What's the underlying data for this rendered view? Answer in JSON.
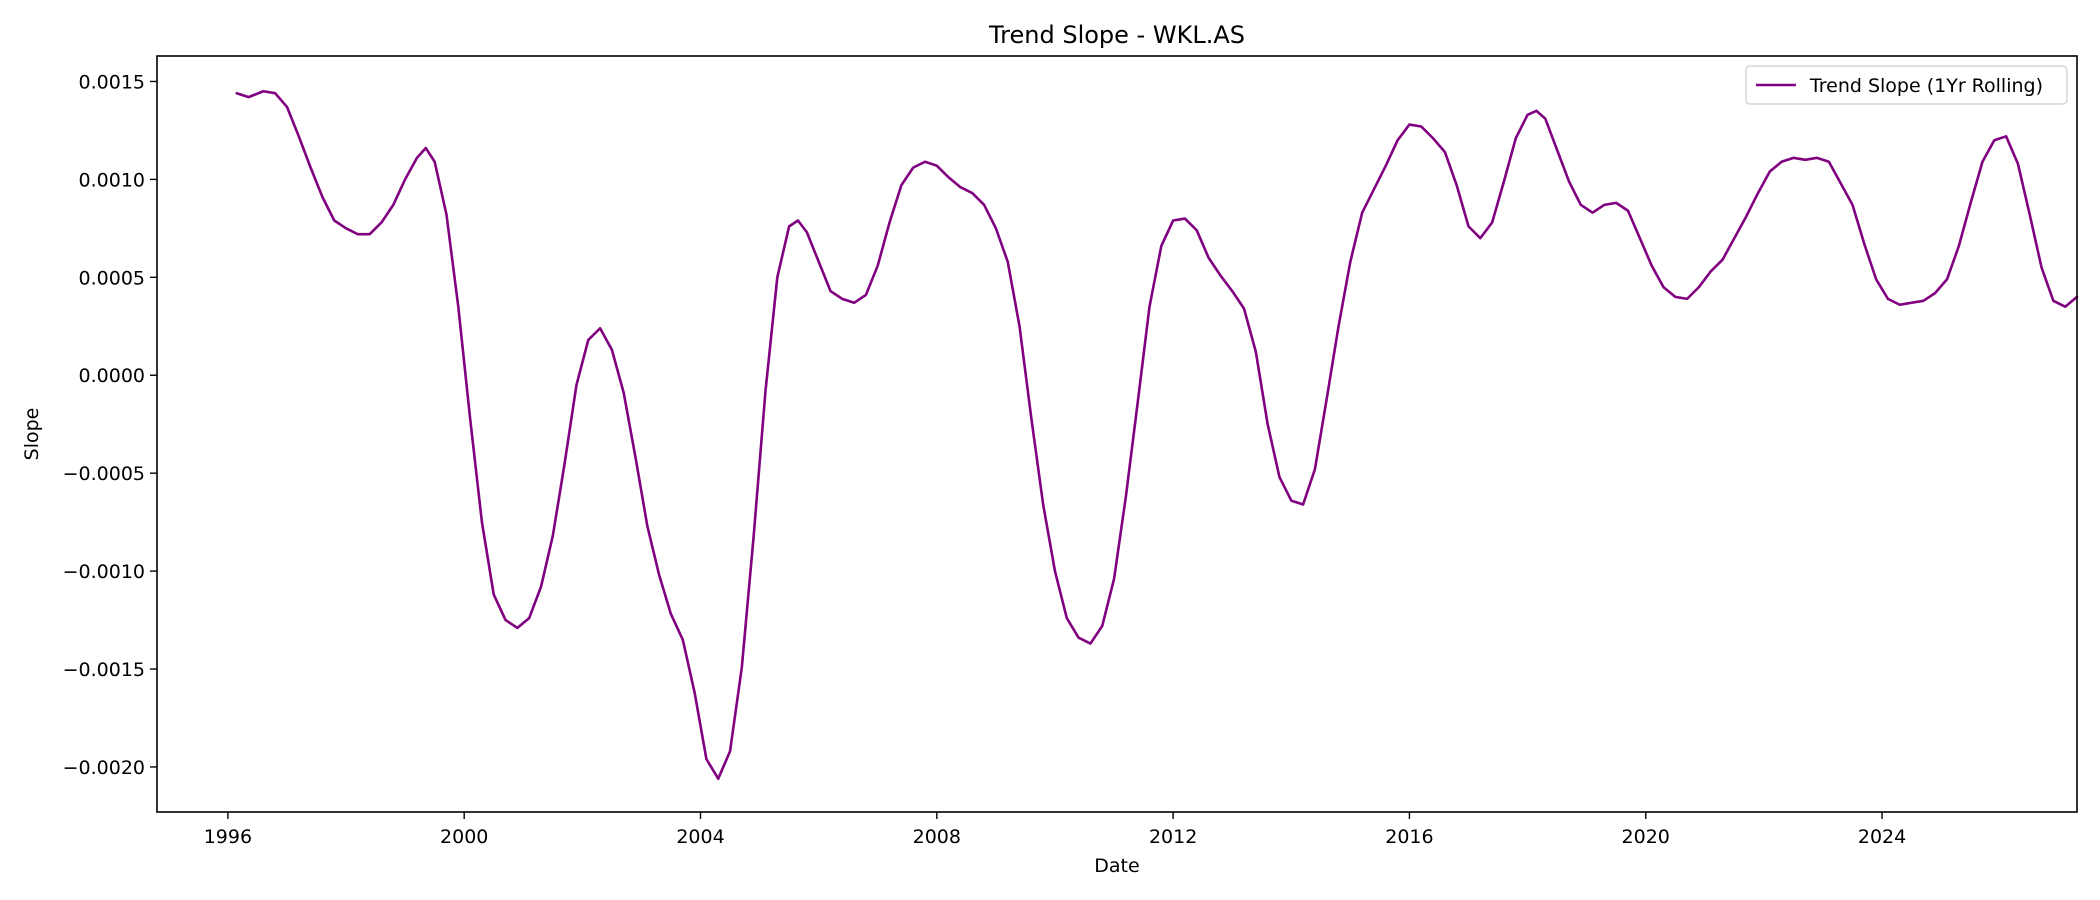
{
  "chart_data": {
    "type": "line",
    "title": "Trend Slope - WKL.AS",
    "xlabel": "Date",
    "ylabel": "Slope",
    "xlim": [
      1994.8,
      2027.3
    ],
    "ylim": [
      -0.00223,
      0.00163
    ],
    "x_ticks": [
      1996,
      2000,
      2004,
      2008,
      2012,
      2016,
      2020,
      2024
    ],
    "x_tick_labels": [
      "1996",
      "2000",
      "2004",
      "2008",
      "2012",
      "2016",
      "2020",
      "2024"
    ],
    "y_ticks": [
      0.0015,
      0.001,
      0.0005,
      0.0,
      -0.0005,
      -0.001,
      -0.0015,
      -0.002
    ],
    "y_tick_labels": [
      "0.0015",
      "0.0010",
      "0.0005",
      "0.0000",
      "−0.0005",
      "−0.0010",
      "−0.0015",
      "−0.0020"
    ],
    "grid": false,
    "legend_position": "top-right",
    "series": [
      {
        "name": "Trend Slope (1Yr Rolling)",
        "color": "#800080",
        "points": [
          [
            1996.15,
            0.00144
          ],
          [
            1996.35,
            0.00142
          ],
          [
            1996.6,
            0.00145
          ],
          [
            1996.8,
            0.00144
          ],
          [
            1997.0,
            0.00137
          ],
          [
            1997.2,
            0.00122
          ],
          [
            1997.4,
            0.00106
          ],
          [
            1997.6,
            0.00091
          ],
          [
            1997.8,
            0.00079
          ],
          [
            1998.0,
            0.00075
          ],
          [
            1998.2,
            0.00072
          ],
          [
            1998.4,
            0.00072
          ],
          [
            1998.6,
            0.00078
          ],
          [
            1998.8,
            0.00087
          ],
          [
            1999.0,
            0.001
          ],
          [
            1999.2,
            0.00111
          ],
          [
            1999.35,
            0.00116
          ],
          [
            1999.5,
            0.00109
          ],
          [
            1999.7,
            0.00082
          ],
          [
            1999.9,
            0.00035
          ],
          [
            2000.1,
            -0.00022
          ],
          [
            2000.3,
            -0.00075
          ],
          [
            2000.5,
            -0.00112
          ],
          [
            2000.7,
            -0.00125
          ],
          [
            2000.9,
            -0.00129
          ],
          [
            2001.1,
            -0.00124
          ],
          [
            2001.3,
            -0.00108
          ],
          [
            2001.5,
            -0.00082
          ],
          [
            2001.7,
            -0.00045
          ],
          [
            2001.9,
            -5e-05
          ],
          [
            2002.1,
            0.00018
          ],
          [
            2002.3,
            0.00024
          ],
          [
            2002.5,
            0.00013
          ],
          [
            2002.7,
            -9e-05
          ],
          [
            2002.9,
            -0.00042
          ],
          [
            2003.1,
            -0.00077
          ],
          [
            2003.3,
            -0.00102
          ],
          [
            2003.5,
            -0.00122
          ],
          [
            2003.7,
            -0.00135
          ],
          [
            2003.9,
            -0.00162
          ],
          [
            2004.1,
            -0.00196
          ],
          [
            2004.3,
            -0.00206
          ],
          [
            2004.5,
            -0.00192
          ],
          [
            2004.7,
            -0.00149
          ],
          [
            2004.9,
            -0.00082
          ],
          [
            2005.1,
            -8e-05
          ],
          [
            2005.3,
            0.0005
          ],
          [
            2005.5,
            0.00076
          ],
          [
            2005.65,
            0.00079
          ],
          [
            2005.8,
            0.00073
          ],
          [
            2006.0,
            0.00058
          ],
          [
            2006.2,
            0.00043
          ],
          [
            2006.4,
            0.00039
          ],
          [
            2006.6,
            0.00037
          ],
          [
            2006.8,
            0.00041
          ],
          [
            2007.0,
            0.00056
          ],
          [
            2007.2,
            0.00078
          ],
          [
            2007.4,
            0.00097
          ],
          [
            2007.6,
            0.00106
          ],
          [
            2007.8,
            0.00109
          ],
          [
            2008.0,
            0.00107
          ],
          [
            2008.2,
            0.00101
          ],
          [
            2008.4,
            0.00096
          ],
          [
            2008.6,
            0.00093
          ],
          [
            2008.8,
            0.00087
          ],
          [
            2009.0,
            0.00075
          ],
          [
            2009.2,
            0.00058
          ],
          [
            2009.4,
            0.00025
          ],
          [
            2009.6,
            -0.00022
          ],
          [
            2009.8,
            -0.00066
          ],
          [
            2010.0,
            -0.001
          ],
          [
            2010.2,
            -0.00124
          ],
          [
            2010.4,
            -0.00134
          ],
          [
            2010.6,
            -0.00137
          ],
          [
            2010.8,
            -0.00128
          ],
          [
            2011.0,
            -0.00104
          ],
          [
            2011.2,
            -0.00062
          ],
          [
            2011.4,
            -0.00014
          ],
          [
            2011.6,
            0.00035
          ],
          [
            2011.8,
            0.00066
          ],
          [
            2012.0,
            0.00079
          ],
          [
            2012.2,
            0.0008
          ],
          [
            2012.4,
            0.00074
          ],
          [
            2012.6,
            0.0006
          ],
          [
            2012.8,
            0.00051
          ],
          [
            2013.0,
            0.00043
          ],
          [
            2013.2,
            0.00034
          ],
          [
            2013.4,
            0.00012
          ],
          [
            2013.6,
            -0.00025
          ],
          [
            2013.8,
            -0.00052
          ],
          [
            2014.0,
            -0.00064
          ],
          [
            2014.2,
            -0.00066
          ],
          [
            2014.4,
            -0.00048
          ],
          [
            2014.6,
            -0.00012
          ],
          [
            2014.8,
            0.00025
          ],
          [
            2015.0,
            0.00058
          ],
          [
            2015.2,
            0.00083
          ],
          [
            2015.4,
            0.00095
          ],
          [
            2015.6,
            0.00107
          ],
          [
            2015.8,
            0.0012
          ],
          [
            2016.0,
            0.00128
          ],
          [
            2016.2,
            0.00127
          ],
          [
            2016.4,
            0.00121
          ],
          [
            2016.6,
            0.00114
          ],
          [
            2016.8,
            0.00097
          ],
          [
            2017.0,
            0.00076
          ],
          [
            2017.2,
            0.0007
          ],
          [
            2017.4,
            0.00078
          ],
          [
            2017.6,
            0.00099
          ],
          [
            2017.8,
            0.00121
          ],
          [
            2018.0,
            0.00133
          ],
          [
            2018.15,
            0.00135
          ],
          [
            2018.3,
            0.00131
          ],
          [
            2018.5,
            0.00115
          ],
          [
            2018.7,
            0.00099
          ],
          [
            2018.9,
            0.00087
          ],
          [
            2019.1,
            0.00083
          ],
          [
            2019.3,
            0.00087
          ],
          [
            2019.5,
            0.00088
          ],
          [
            2019.7,
            0.00084
          ],
          [
            2019.9,
            0.0007
          ],
          [
            2020.1,
            0.00056
          ],
          [
            2020.3,
            0.00045
          ],
          [
            2020.5,
            0.0004
          ],
          [
            2020.7,
            0.00039
          ],
          [
            2020.9,
            0.00045
          ],
          [
            2021.1,
            0.00053
          ],
          [
            2021.3,
            0.00059
          ],
          [
            2021.5,
            0.0007
          ],
          [
            2021.7,
            0.00081
          ],
          [
            2021.9,
            0.00093
          ],
          [
            2022.1,
            0.00104
          ],
          [
            2022.3,
            0.00109
          ],
          [
            2022.5,
            0.00111
          ],
          [
            2022.7,
            0.0011
          ],
          [
            2022.9,
            0.00111
          ],
          [
            2023.1,
            0.00109
          ],
          [
            2023.3,
            0.00098
          ],
          [
            2023.5,
            0.00087
          ],
          [
            2023.7,
            0.00067
          ],
          [
            2023.9,
            0.00049
          ],
          [
            2024.1,
            0.00039
          ],
          [
            2024.3,
            0.00036
          ],
          [
            2024.5,
            0.00037
          ],
          [
            2024.7,
            0.00038
          ],
          [
            2024.9,
            0.00042
          ],
          [
            2025.1,
            0.00049
          ],
          [
            2025.3,
            0.00066
          ],
          [
            2025.5,
            0.00088
          ],
          [
            2025.7,
            0.00109
          ],
          [
            2025.9,
            0.0012
          ],
          [
            2026.1,
            0.00122
          ],
          [
            2026.3,
            0.00108
          ],
          [
            2026.5,
            0.00082
          ],
          [
            2026.7,
            0.00055
          ],
          [
            2026.9,
            0.00038
          ],
          [
            2027.1,
            0.00035
          ],
          [
            2027.3,
            0.0004
          ]
        ]
      }
    ]
  }
}
